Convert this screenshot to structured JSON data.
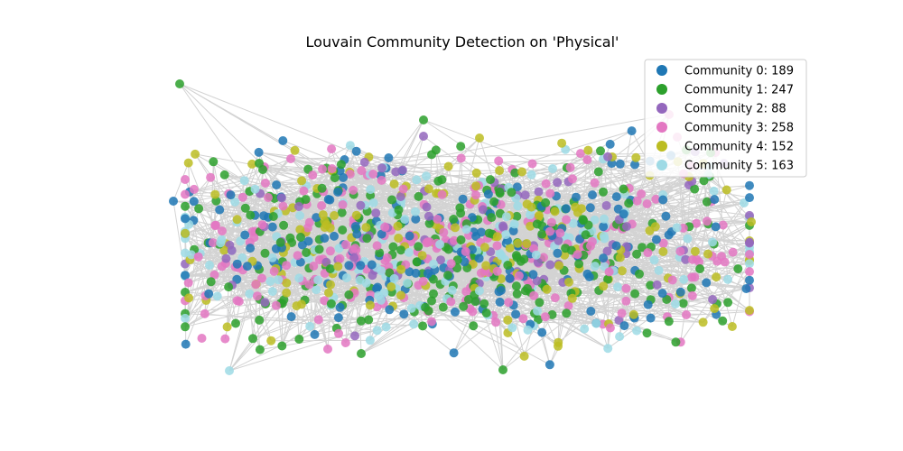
{
  "chart_data": {
    "type": "scatter",
    "subtype": "network-graph",
    "title": "Louvain Community Detection on 'Physical'",
    "axes_visible": false,
    "grid": false,
    "legend_placement": "top-right",
    "edge_color": "#808080",
    "series": [
      {
        "name": "Community 0: 189",
        "color": "#1f77b4",
        "count": 189
      },
      {
        "name": "Community 1: 247",
        "color": "#2ca02c",
        "count": 247
      },
      {
        "name": "Community 2: 88",
        "color": "#9467bd",
        "count": 88
      },
      {
        "name": "Community 3: 258",
        "color": "#e377c2",
        "count": 258
      },
      {
        "name": "Community 4: 152",
        "color": "#bcbd22",
        "count": 152
      },
      {
        "name": "Community 5: 163",
        "color": "#9edae5",
        "count": 163
      }
    ]
  }
}
